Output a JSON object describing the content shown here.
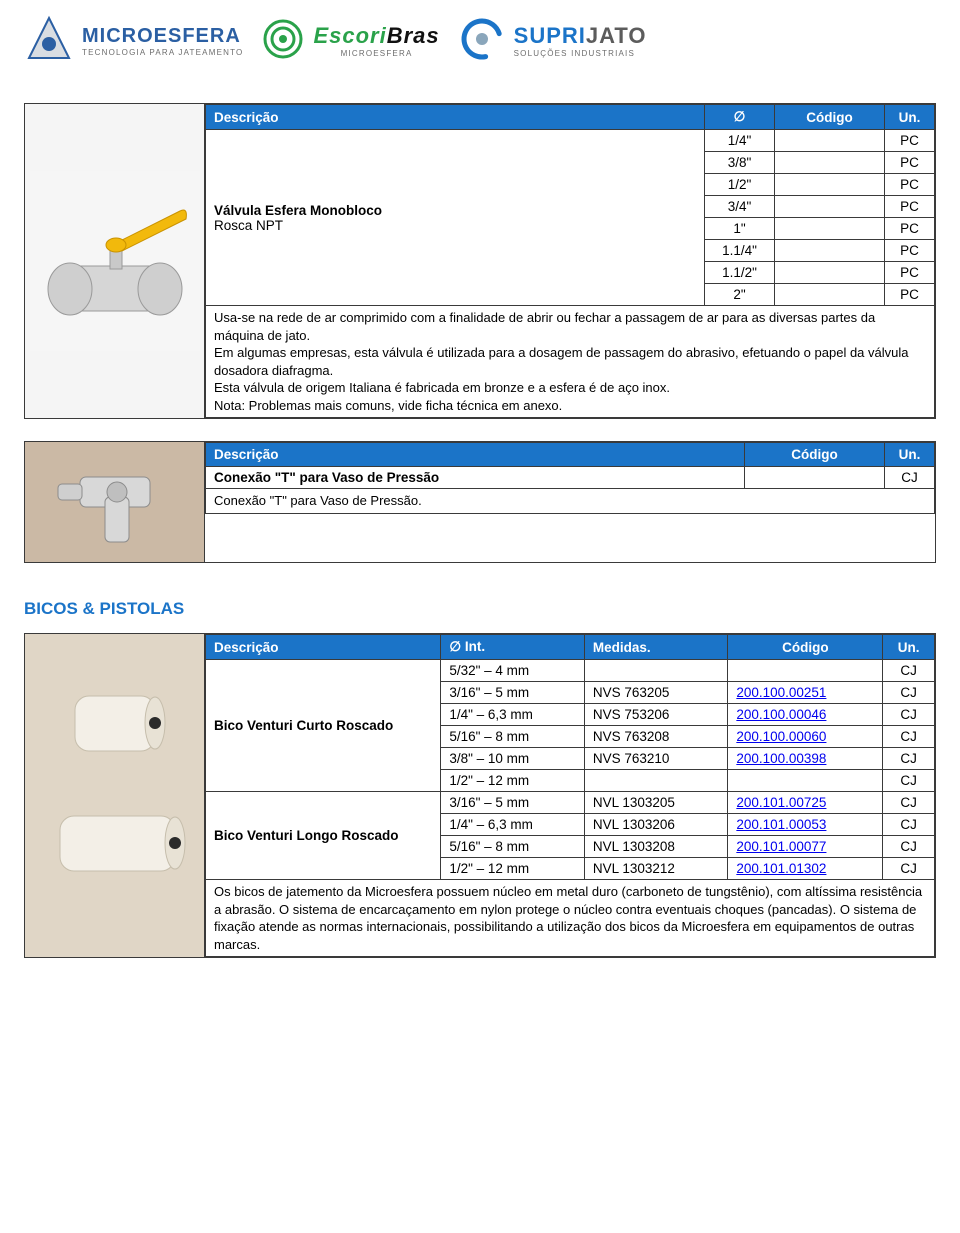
{
  "logos": {
    "microesfera": {
      "main": "MICROESFERA",
      "sub": "TECNOLOGIA PARA JATEAMENTO",
      "color": "#2b5fa3"
    },
    "escoribras": {
      "main": "EscoriBras",
      "sub": "MICROESFERA",
      "color": "#5c5c5c",
      "accent": "#2aa24a"
    },
    "suprijato": {
      "main": "SUPRIJATO",
      "sub": "SOLUÇÕES INDUSTRIAIS",
      "color": "#5c5c5c",
      "accent": "#1b74c8"
    }
  },
  "colors": {
    "header_bg": "#1b74c8",
    "header_fg": "#ffffff",
    "border": "#3a3a3a",
    "link": "#0000ee",
    "section_title": "#1b74c8"
  },
  "valve_table": {
    "headers": {
      "desc": "Descrição",
      "diam": "∅",
      "code": "Código",
      "unit": "Un."
    },
    "name_lines": [
      "Válvula Esfera Monobloco",
      "Rosca NPT"
    ],
    "rows": [
      {
        "diam": "1/4\"",
        "code": "",
        "unit": "PC"
      },
      {
        "diam": "3/8\"",
        "code": "",
        "unit": "PC"
      },
      {
        "diam": "1/2\"",
        "code": "",
        "unit": "PC"
      },
      {
        "diam": "3/4\"",
        "code": "",
        "unit": "PC"
      },
      {
        "diam": "1\"",
        "code": "",
        "unit": "PC"
      },
      {
        "diam": "1.1/4\"",
        "code": "",
        "unit": "PC"
      },
      {
        "diam": "1.1/2\"",
        "code": "",
        "unit": "PC"
      },
      {
        "diam": "2\"",
        "code": "",
        "unit": "PC"
      }
    ],
    "description": "Usa-se na rede de ar comprimido com a finalidade de abrir ou fechar a passagem de ar para as diversas partes da máquina de jato.\nEm algumas empresas, esta válvula é utilizada para a dosagem de passagem do abrasivo, efetuando o papel da válvula dosadora diafragma.\nEsta válvula de origem Italiana é fabricada em bronze e a esfera é de aço inox.\nNota: Problemas mais comuns, vide ficha técnica em anexo."
  },
  "tee_table": {
    "headers": {
      "desc": "Descrição",
      "code": "Código",
      "unit": "Un."
    },
    "name": "Conexão \"T\" para Vaso de Pressão",
    "unit": "CJ",
    "description": "Conexão \"T\" para Vaso de Pressão."
  },
  "section_bicos": "BICOS & PISTOLAS",
  "bicos_table": {
    "headers": {
      "desc": "Descrição",
      "int": "∅ Int.",
      "med": "Medidas.",
      "code": "Código",
      "unit": "Un."
    },
    "groups": [
      {
        "name": "Bico Venturi Curto Roscado",
        "rows": [
          {
            "int": "5/32\" – 4 mm",
            "med": "",
            "code": "",
            "unit": "CJ"
          },
          {
            "int": "3/16\" – 5 mm",
            "med": "NVS 763205",
            "code": "200.100.00251",
            "unit": "CJ"
          },
          {
            "int": "1/4\" – 6,3 mm",
            "med": "NVS 753206",
            "code": "200.100.00046",
            "unit": "CJ"
          },
          {
            "int": "5/16\" – 8 mm",
            "med": "NVS 763208",
            "code": "200.100.00060",
            "unit": "CJ"
          },
          {
            "int": "3/8\" – 10 mm",
            "med": "NVS 763210",
            "code": "200.100.00398",
            "unit": "CJ"
          },
          {
            "int": "1/2\" – 12 mm",
            "med": "",
            "code": "",
            "unit": "CJ"
          }
        ]
      },
      {
        "name": "Bico Venturi Longo Roscado",
        "rows": [
          {
            "int": "3/16\" – 5 mm",
            "med": "NVL 1303205",
            "code": "200.101.00725",
            "unit": "CJ"
          },
          {
            "int": "1/4\" – 6,3 mm",
            "med": "NVL 1303206",
            "code": "200.101.00053",
            "unit": "CJ"
          },
          {
            "int": "5/16\" – 8 mm",
            "med": "NVL 1303208",
            "code": "200.101.00077",
            "unit": "CJ"
          },
          {
            "int": "1/2\" – 12 mm",
            "med": "NVL 1303212",
            "code": "200.101.01302",
            "unit": "CJ"
          }
        ]
      }
    ],
    "description": "Os bicos de jatemento da Microesfera possuem núcleo em metal duro (carboneto de tungstênio), com altíssima resistência a abrasão. O sistema de encarcaçamento em nylon protege o núcleo contra eventuais choques (pancadas). O sistema de fixação atende as normas internacionais, possibilitando a utilização dos bicos da Microesfera em equipamentos de outras marcas."
  }
}
